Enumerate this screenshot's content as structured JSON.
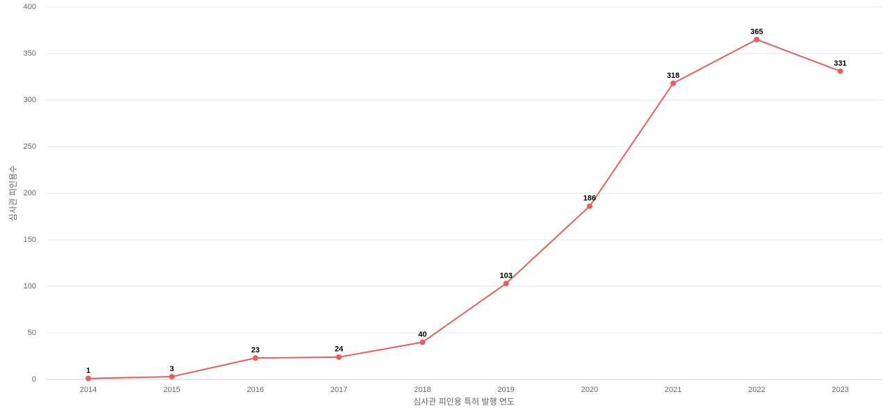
{
  "chart_data": {
    "type": "line",
    "categories": [
      "2014",
      "2015",
      "2016",
      "2017",
      "2018",
      "2019",
      "2020",
      "2021",
      "2022",
      "2023"
    ],
    "series": [
      {
        "name": "심사관 피인용수",
        "color": "#ef5a5a",
        "values": [
          1,
          3,
          23,
          24,
          40,
          103,
          186,
          318,
          365,
          331
        ]
      }
    ],
    "x_label": "심사관 피인용 특허 발행 연도",
    "y_label": "심사관 피인용수",
    "ylim": [
      0,
      400
    ],
    "yticks": [
      0,
      50,
      100,
      150,
      200,
      250,
      300,
      350,
      400
    ],
    "grid": true
  }
}
